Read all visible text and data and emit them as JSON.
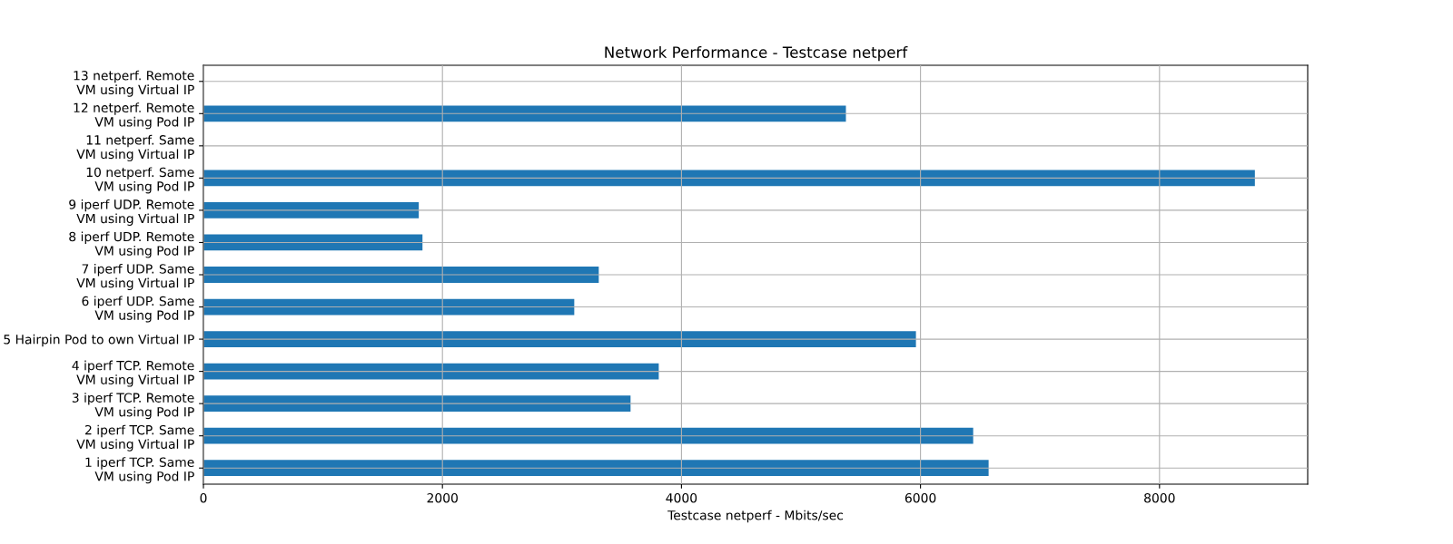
{
  "chart_data": {
    "type": "bar",
    "orientation": "horizontal",
    "title": "Network Performance - Testcase netperf",
    "xlabel": "Testcase netperf - Mbits/sec",
    "categories": [
      "13 netperf. Remote\nVM using Virtual IP",
      "12 netperf. Remote\nVM using Pod IP",
      "11 netperf. Same\nVM using Virtual IP",
      "10 netperf. Same\nVM using Pod IP",
      "9 iperf UDP. Remote\nVM using Virtual IP",
      "8 iperf UDP. Remote\nVM using Pod IP",
      "7 iperf UDP. Same\nVM using Virtual IP",
      "6 iperf UDP. Same\nVM using Pod IP",
      "5 Hairpin Pod to own Virtual IP",
      "4 iperf TCP. Remote\nVM using Virtual IP",
      "3 iperf TCP. Remote\nVM using Pod IP",
      "2 iperf TCP. Same\nVM using Virtual IP",
      "1 iperf TCP. Same\nVM using Pod IP"
    ],
    "values": [
      null,
      5376,
      null,
      8798,
      1802,
      1833,
      3308,
      3103,
      5962,
      3810,
      3574,
      6441,
      6570
    ],
    "color": "#1f77b4",
    "xlim": [
      0,
      9240
    ],
    "xticks": [
      0,
      2000,
      4000,
      6000,
      8000
    ],
    "grid": true
  }
}
